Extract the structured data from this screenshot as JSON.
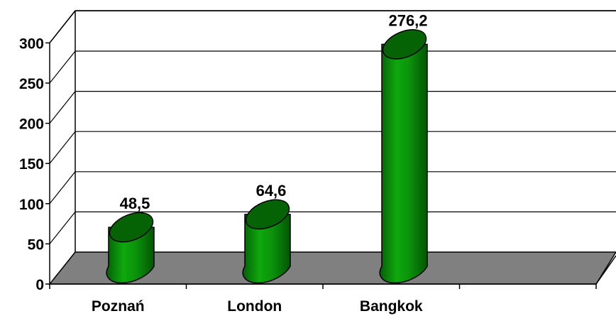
{
  "chart_data": {
    "type": "bar",
    "categories": [
      "Poznań",
      "London",
      "Bangkok"
    ],
    "values": [
      48.5,
      64.6,
      276.2
    ],
    "value_labels": [
      "48,5",
      "64,6",
      "276,2"
    ],
    "ylim": [
      0,
      300
    ],
    "yticks": [
      "0",
      "50",
      "100",
      "150",
      "200",
      "250",
      "300"
    ],
    "grid": true,
    "legend": "none",
    "colors": {
      "bar": "#0a8c0a",
      "bar_top": "#056305",
      "floor": "#808080"
    }
  }
}
